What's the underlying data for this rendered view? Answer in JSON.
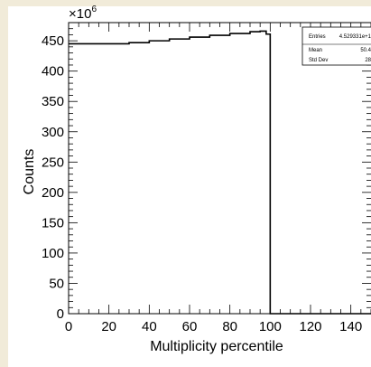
{
  "chart_data": {
    "type": "histogram",
    "xlabel": "Multiplicity percentile",
    "ylabel": "Counts",
    "exponent_base": "×10",
    "exponent_power": "6",
    "xlim": [
      0,
      150
    ],
    "ylim": [
      0,
      480
    ],
    "x_ticks": [
      0,
      20,
      40,
      60,
      80,
      100,
      120,
      140
    ],
    "y_ticks": [
      0,
      50,
      100,
      150,
      200,
      250,
      300,
      350,
      400,
      450
    ],
    "series": [
      {
        "x": [
          0,
          10,
          20,
          30,
          40,
          50,
          60,
          70,
          80,
          90,
          95,
          98,
          100
        ],
        "values": [
          445,
          445,
          445,
          447,
          450,
          453,
          456,
          459,
          462,
          465,
          466,
          461,
          0
        ]
      }
    ],
    "stats_box": {
      "rows": [
        {
          "label": "Entries",
          "value": "4.529331e+1"
        },
        {
          "label": "Mean",
          "value": "50.4"
        },
        {
          "label": "Std Dev",
          "value": "28"
        }
      ]
    }
  }
}
